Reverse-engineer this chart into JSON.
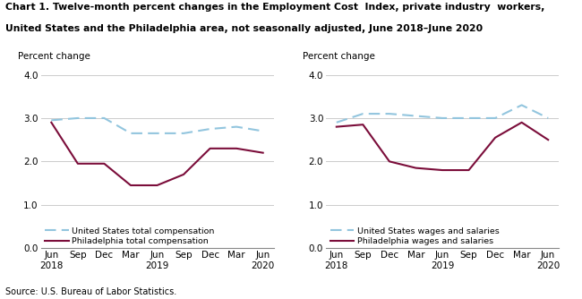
{
  "title_line1": "Chart 1. Twelve-month percent changes in the Employment Cost  Index, private industry  workers,",
  "title_line2": "United States and the Philadelphia area, not seasonally adjusted, June 2018–June 2020",
  "source": "Source: U.S. Bureau of Labor Statistics.",
  "ylabel": "Percent change",
  "x_labels": [
    "Jun\n2018",
    "Sep",
    "Dec",
    "Mar",
    "Jun\n2019",
    "Sep",
    "Dec",
    "Mar",
    "Jun\n2020"
  ],
  "x_positions": [
    0,
    1,
    2,
    3,
    4,
    5,
    6,
    7,
    8
  ],
  "ylim": [
    0.0,
    4.0
  ],
  "yticks": [
    0.0,
    1.0,
    2.0,
    3.0,
    4.0
  ],
  "left_chart": {
    "us_total_comp": [
      2.95,
      3.0,
      3.0,
      2.65,
      2.65,
      2.65,
      2.75,
      2.8,
      2.7
    ],
    "philly_total_comp": [
      2.9,
      1.95,
      1.95,
      1.45,
      1.45,
      1.7,
      2.3,
      2.3,
      2.2
    ],
    "legend1": "United States total compensation",
    "legend2": "Philadelphia total compensation"
  },
  "right_chart": {
    "us_wages_salaries": [
      2.9,
      3.1,
      3.1,
      3.05,
      3.0,
      3.0,
      3.0,
      3.3,
      3.0
    ],
    "philly_wages_salaries": [
      2.8,
      2.85,
      2.0,
      1.85,
      1.8,
      1.8,
      2.55,
      2.9,
      2.5
    ],
    "legend1": "United States wages and salaries",
    "legend2": "Philadelphia wages and salaries"
  },
  "us_color": "#92C5DE",
  "philly_color": "#7B0D3A",
  "linewidth": 1.5,
  "grid_color": "#cccccc",
  "background_color": "#ffffff",
  "title_fontsize": 7.8,
  "label_fontsize": 7.5,
  "tick_fontsize": 7.5,
  "source_fontsize": 7.0
}
